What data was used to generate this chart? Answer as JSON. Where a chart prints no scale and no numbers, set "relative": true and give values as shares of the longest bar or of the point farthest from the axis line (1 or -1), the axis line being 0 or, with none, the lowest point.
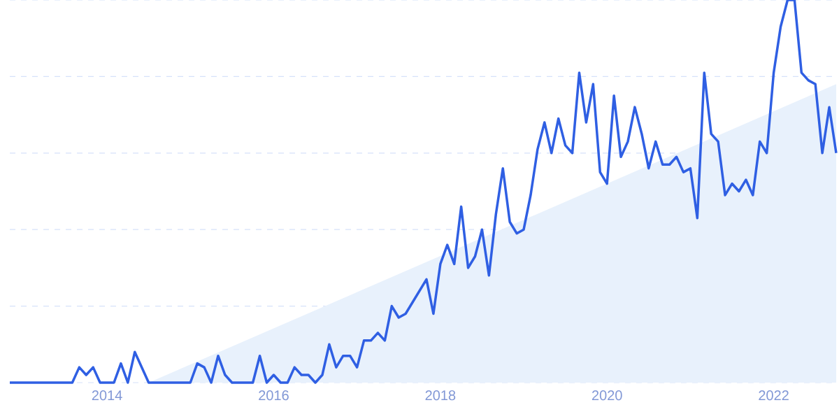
{
  "chart_data": {
    "type": "line",
    "relative": true,
    "grid": "y",
    "xlim": [
      "2012-11",
      "2022-10"
    ],
    "xticks": [
      "2014",
      "2016",
      "2018",
      "2020",
      "2022"
    ],
    "series": [
      {
        "type": "area",
        "color": "#e8f1fc",
        "x": [
          "2014-07",
          "2022-10"
        ],
        "values": [
          0,
          0.78
        ]
      },
      {
        "color": "#2f5fe3",
        "x": [
          "2012-11",
          "2013-08",
          "2013-09",
          "2013-10",
          "2013-11",
          "2013-12",
          "2014-02",
          "2014-03",
          "2014-04",
          "2014-05",
          "2014-07",
          "2015-01",
          "2015-02",
          "2015-03",
          "2015-04",
          "2015-05",
          "2015-06",
          "2015-07",
          "2015-10",
          "2015-11",
          "2015-12",
          "2016-01",
          "2016-02",
          "2016-03",
          "2016-04",
          "2016-05",
          "2016-06",
          "2016-07",
          "2016-08",
          "2016-09",
          "2016-10",
          "2016-11",
          "2016-12",
          "2017-01",
          "2017-02",
          "2017-03",
          "2017-04",
          "2017-05",
          "2017-06",
          "2017-07",
          "2017-08",
          "2017-11",
          "2017-12",
          "2018-01",
          "2018-02",
          "2018-03",
          "2018-04",
          "2018-05",
          "2018-06",
          "2018-07",
          "2018-08",
          "2018-09",
          "2018-10",
          "2018-11",
          "2018-12",
          "2019-01",
          "2019-02",
          "2019-03",
          "2019-04",
          "2019-05",
          "2019-06",
          "2019-07",
          "2019-08",
          "2019-09",
          "2019-10",
          "2019-11",
          "2019-12",
          "2020-01",
          "2020-02",
          "2020-03",
          "2020-04",
          "2020-05",
          "2020-06",
          "2020-07",
          "2020-08",
          "2020-09",
          "2020-10",
          "2020-11",
          "2020-12",
          "2021-01",
          "2021-02",
          "2021-03",
          "2021-04",
          "2021-05",
          "2021-06",
          "2021-07",
          "2021-08",
          "2021-09",
          "2021-10",
          "2021-11",
          "2021-12",
          "2022-01",
          "2022-02",
          "2022-03",
          "2022-04",
          "2022-05",
          "2022-06",
          "2022-07",
          "2022-08",
          "2022-09",
          "2022-10"
        ],
        "values": [
          0,
          0,
          0.04,
          0.02,
          0.04,
          0,
          0,
          0.05,
          0,
          0.08,
          0,
          0,
          0.05,
          0.04,
          0,
          0.07,
          0.02,
          0,
          0,
          0.07,
          0,
          0.02,
          0,
          0,
          0.04,
          0.02,
          0.02,
          0,
          0.02,
          0.1,
          0.04,
          0.07,
          0.07,
          0.04,
          0.11,
          0.11,
          0.13,
          0.11,
          0.2,
          0.17,
          0.18,
          0.27,
          0.18,
          0.31,
          0.36,
          0.31,
          0.46,
          0.3,
          0.33,
          0.4,
          0.28,
          0.44,
          0.56,
          0.42,
          0.39,
          0.4,
          0.49,
          0.61,
          0.68,
          0.6,
          0.69,
          0.62,
          0.6,
          0.81,
          0.68,
          0.78,
          0.55,
          0.52,
          0.75,
          0.59,
          0.63,
          0.72,
          0.65,
          0.56,
          0.63,
          0.57,
          0.57,
          0.59,
          0.55,
          0.56,
          0.43,
          0.81,
          0.65,
          0.63,
          0.49,
          0.52,
          0.5,
          0.53,
          0.49,
          0.63,
          0.6,
          0.81,
          0.93,
          1,
          1,
          0.81,
          0.79,
          0.78,
          0.6,
          0.72,
          0.6
        ]
      }
    ]
  }
}
